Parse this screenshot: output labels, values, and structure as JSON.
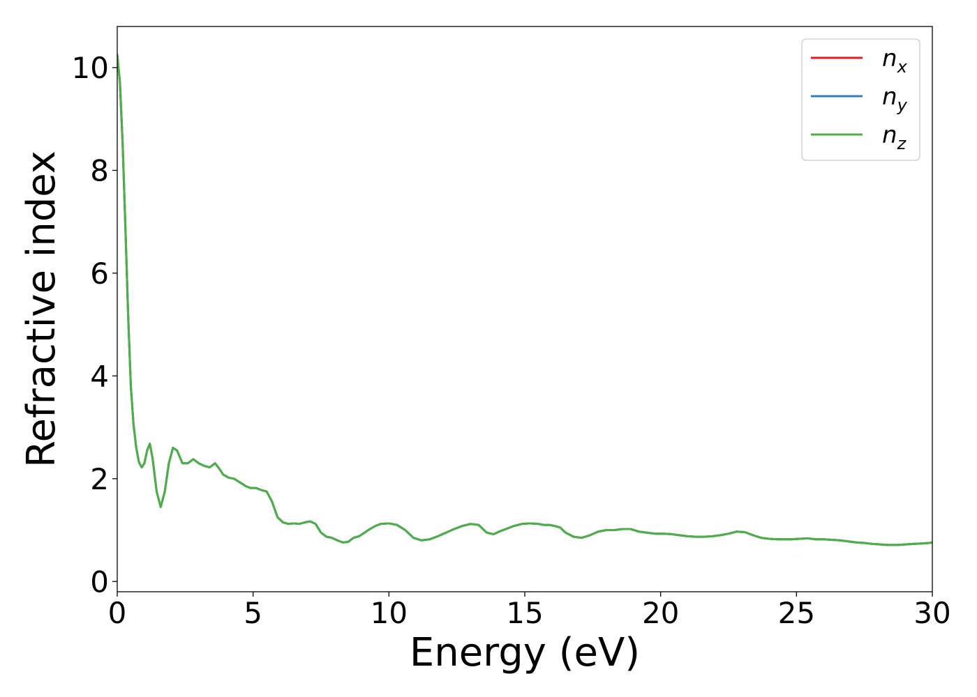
{
  "chart_data": {
    "type": "line",
    "title": "",
    "xlabel": "Energy (eV)",
    "ylabel": "Refractive index",
    "xlim": [
      0,
      30
    ],
    "ylim": [
      -0.2,
      10.8
    ],
    "x_ticks": [
      0,
      5,
      10,
      15,
      20,
      25,
      30
    ],
    "y_ticks": [
      0,
      2,
      4,
      6,
      8,
      10
    ],
    "grid": false,
    "legend_position": "top-right",
    "x": [
      0.0,
      0.1,
      0.2,
      0.3,
      0.4,
      0.5,
      0.6,
      0.7,
      0.8,
      0.9,
      1.0,
      1.1,
      1.2,
      1.3,
      1.45,
      1.6,
      1.75,
      1.9,
      2.05,
      2.2,
      2.4,
      2.6,
      2.8,
      3.0,
      3.2,
      3.4,
      3.6,
      3.75,
      3.9,
      4.1,
      4.3,
      4.45,
      4.6,
      4.75,
      4.9,
      5.1,
      5.3,
      5.5,
      5.7,
      5.9,
      6.1,
      6.3,
      6.5,
      6.7,
      6.9,
      7.1,
      7.3,
      7.5,
      7.7,
      7.9,
      8.1,
      8.3,
      8.5,
      8.7,
      8.9,
      9.1,
      9.3,
      9.5,
      9.7,
      10.0,
      10.3,
      10.6,
      10.9,
      11.2,
      11.5,
      11.8,
      12.1,
      12.4,
      12.7,
      13.0,
      13.3,
      13.6,
      13.85,
      14.1,
      14.3,
      14.6,
      14.9,
      15.2,
      15.5,
      15.7,
      15.9,
      16.1,
      16.3,
      16.5,
      16.8,
      17.1,
      17.4,
      17.7,
      18.0,
      18.3,
      18.6,
      18.9,
      19.2,
      19.5,
      19.8,
      20.1,
      20.4,
      20.7,
      21.0,
      21.3,
      21.6,
      21.9,
      22.2,
      22.5,
      22.8,
      23.1,
      23.4,
      23.7,
      24.0,
      24.3,
      24.5,
      24.8,
      25.1,
      25.4,
      25.7,
      26.0,
      26.3,
      26.6,
      26.9,
      27.2,
      27.5,
      27.8,
      28.1,
      28.4,
      28.7,
      29.0,
      29.3,
      29.6,
      29.9,
      30.0
    ],
    "series": [
      {
        "name": "n_x",
        "color": "#e41a1c",
        "values": [
          10.25,
          9.7,
          8.5,
          6.9,
          5.2,
          3.8,
          3.05,
          2.6,
          2.32,
          2.22,
          2.3,
          2.55,
          2.68,
          2.4,
          1.75,
          1.45,
          1.75,
          2.3,
          2.6,
          2.55,
          2.3,
          2.3,
          2.38,
          2.3,
          2.25,
          2.22,
          2.3,
          2.2,
          2.08,
          2.02,
          2.0,
          1.95,
          1.9,
          1.85,
          1.82,
          1.82,
          1.78,
          1.75,
          1.55,
          1.25,
          1.15,
          1.12,
          1.13,
          1.12,
          1.15,
          1.17,
          1.12,
          0.95,
          0.87,
          0.85,
          0.8,
          0.76,
          0.77,
          0.85,
          0.88,
          0.95,
          1.02,
          1.08,
          1.12,
          1.13,
          1.1,
          1.0,
          0.85,
          0.8,
          0.82,
          0.88,
          0.95,
          1.02,
          1.08,
          1.12,
          1.1,
          0.95,
          0.92,
          0.98,
          1.02,
          1.08,
          1.12,
          1.13,
          1.12,
          1.1,
          1.1,
          1.08,
          1.05,
          0.95,
          0.87,
          0.85,
          0.9,
          0.97,
          1.0,
          1.0,
          1.02,
          1.02,
          0.97,
          0.95,
          0.93,
          0.93,
          0.92,
          0.9,
          0.88,
          0.87,
          0.87,
          0.88,
          0.9,
          0.93,
          0.97,
          0.96,
          0.9,
          0.85,
          0.83,
          0.82,
          0.82,
          0.82,
          0.83,
          0.84,
          0.82,
          0.82,
          0.81,
          0.8,
          0.78,
          0.76,
          0.75,
          0.73,
          0.72,
          0.71,
          0.71,
          0.72,
          0.73,
          0.74,
          0.75,
          0.76
        ]
      },
      {
        "name": "n_y",
        "color": "#377eb8",
        "values": [
          10.25,
          9.7,
          8.5,
          6.9,
          5.2,
          3.8,
          3.05,
          2.6,
          2.32,
          2.22,
          2.3,
          2.55,
          2.68,
          2.4,
          1.75,
          1.45,
          1.75,
          2.3,
          2.6,
          2.55,
          2.3,
          2.3,
          2.38,
          2.3,
          2.25,
          2.22,
          2.3,
          2.2,
          2.08,
          2.02,
          2.0,
          1.95,
          1.9,
          1.85,
          1.82,
          1.82,
          1.78,
          1.75,
          1.55,
          1.25,
          1.15,
          1.12,
          1.13,
          1.12,
          1.15,
          1.17,
          1.12,
          0.95,
          0.87,
          0.85,
          0.8,
          0.76,
          0.77,
          0.85,
          0.88,
          0.95,
          1.02,
          1.08,
          1.12,
          1.13,
          1.1,
          1.0,
          0.85,
          0.8,
          0.82,
          0.88,
          0.95,
          1.02,
          1.08,
          1.12,
          1.1,
          0.95,
          0.92,
          0.98,
          1.02,
          1.08,
          1.12,
          1.13,
          1.12,
          1.1,
          1.1,
          1.08,
          1.05,
          0.95,
          0.87,
          0.85,
          0.9,
          0.97,
          1.0,
          1.0,
          1.02,
          1.02,
          0.97,
          0.95,
          0.93,
          0.93,
          0.92,
          0.9,
          0.88,
          0.87,
          0.87,
          0.88,
          0.9,
          0.93,
          0.97,
          0.96,
          0.9,
          0.85,
          0.83,
          0.82,
          0.82,
          0.82,
          0.83,
          0.84,
          0.82,
          0.82,
          0.81,
          0.8,
          0.78,
          0.76,
          0.75,
          0.73,
          0.72,
          0.71,
          0.71,
          0.72,
          0.73,
          0.74,
          0.75,
          0.76
        ]
      },
      {
        "name": "n_z",
        "color": "#4daf4a",
        "values": [
          10.25,
          9.7,
          8.5,
          6.9,
          5.2,
          3.8,
          3.05,
          2.6,
          2.32,
          2.22,
          2.3,
          2.55,
          2.68,
          2.4,
          1.75,
          1.45,
          1.75,
          2.3,
          2.6,
          2.55,
          2.3,
          2.3,
          2.38,
          2.3,
          2.25,
          2.22,
          2.3,
          2.2,
          2.08,
          2.02,
          2.0,
          1.95,
          1.9,
          1.85,
          1.82,
          1.82,
          1.78,
          1.75,
          1.55,
          1.25,
          1.15,
          1.12,
          1.13,
          1.12,
          1.15,
          1.17,
          1.12,
          0.95,
          0.87,
          0.85,
          0.8,
          0.76,
          0.77,
          0.85,
          0.88,
          0.95,
          1.02,
          1.08,
          1.12,
          1.13,
          1.1,
          1.0,
          0.85,
          0.8,
          0.82,
          0.88,
          0.95,
          1.02,
          1.08,
          1.12,
          1.1,
          0.95,
          0.92,
          0.98,
          1.02,
          1.08,
          1.12,
          1.13,
          1.12,
          1.1,
          1.1,
          1.08,
          1.05,
          0.95,
          0.87,
          0.85,
          0.9,
          0.97,
          1.0,
          1.0,
          1.02,
          1.02,
          0.97,
          0.95,
          0.93,
          0.93,
          0.92,
          0.9,
          0.88,
          0.87,
          0.87,
          0.88,
          0.9,
          0.93,
          0.97,
          0.96,
          0.9,
          0.85,
          0.83,
          0.82,
          0.82,
          0.82,
          0.83,
          0.84,
          0.82,
          0.82,
          0.81,
          0.8,
          0.78,
          0.76,
          0.75,
          0.73,
          0.72,
          0.71,
          0.71,
          0.72,
          0.73,
          0.74,
          0.75,
          0.76
        ]
      }
    ],
    "legend": [
      {
        "base": "n",
        "sub": "x"
      },
      {
        "base": "n",
        "sub": "y"
      },
      {
        "base": "n",
        "sub": "z"
      }
    ]
  }
}
